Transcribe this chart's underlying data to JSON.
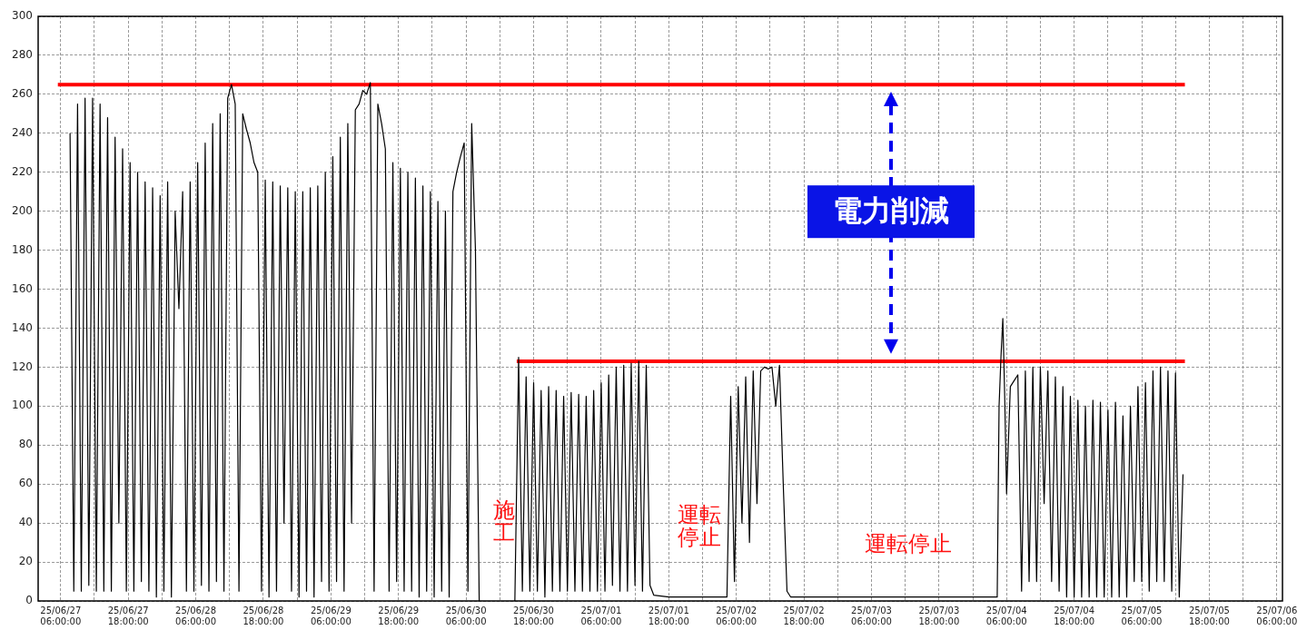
{
  "chart_data": {
    "type": "line",
    "marker": "none",
    "grid": true,
    "legend": false,
    "xlim": [
      "--06-27T02:00",
      "--07-06T07:00"
    ],
    "xticks": [
      {
        "value": "--06-27T06:00",
        "label": "25/06/27\n06:00:00"
      },
      {
        "value": "--06-27T12:00",
        "label": null
      },
      {
        "value": "--06-27T18:00",
        "label": "25/06/27\n18:00:00"
      },
      {
        "value": "--06-28T00:00",
        "label": null
      },
      {
        "value": "--06-28T06:00",
        "label": "25/06/28\n06:00:00"
      },
      {
        "value": "--06-28T12:00",
        "label": null
      },
      {
        "value": "--06-28T18:00",
        "label": "25/06/28\n18:00:00"
      },
      {
        "value": "--06-29T00:00",
        "label": null
      },
      {
        "value": "--06-29T06:00",
        "label": "25/06/29\n06:00:00"
      },
      {
        "value": "--06-29T12:00",
        "label": null
      },
      {
        "value": "--06-29T18:00",
        "label": "25/06/29\n18:00:00"
      },
      {
        "value": "--06-30T00:00",
        "label": null
      },
      {
        "value": "--06-30T06:00",
        "label": "25/06/30\n06:00:00"
      },
      {
        "value": "--06-30T12:00",
        "label": null
      },
      {
        "value": "--06-30T18:00",
        "label": "25/06/30\n18:00:00"
      },
      {
        "value": "--07-01T00:00",
        "label": null
      },
      {
        "value": "--07-01T06:00",
        "label": "25/07/01\n06:00:00"
      },
      {
        "value": "--07-01T12:00",
        "label": null
      },
      {
        "value": "--07-01T18:00",
        "label": "25/07/01\n18:00:00"
      },
      {
        "value": "--07-02T00:00",
        "label": null
      },
      {
        "value": "--07-02T06:00",
        "label": "25/07/02\n06:00:00"
      },
      {
        "value": "--07-02T12:00",
        "label": null
      },
      {
        "value": "--07-02T18:00",
        "label": "25/07/02\n18:00:00"
      },
      {
        "value": "--07-03T00:00",
        "label": null
      },
      {
        "value": "--07-03T06:00",
        "label": "25/07/03\n06:00:00"
      },
      {
        "value": "--07-03T12:00",
        "label": null
      },
      {
        "value": "--07-03T18:00",
        "label": "25/07/03\n18:00:00"
      },
      {
        "value": "--07-04T00:00",
        "label": null
      },
      {
        "value": "--07-04T06:00",
        "label": "25/07/04\n06:00:00"
      },
      {
        "value": "--07-04T12:00",
        "label": null
      },
      {
        "value": "--07-04T18:00",
        "label": "25/07/04\n18:00:00"
      },
      {
        "value": "--07-05T00:00",
        "label": null
      },
      {
        "value": "--07-05T06:00",
        "label": "25/07/05\n06:00:00"
      },
      {
        "value": "--07-05T12:00",
        "label": null
      },
      {
        "value": "--07-05T18:00",
        "label": "25/07/05\n18:00:00"
      },
      {
        "value": "--07-06T00:00",
        "label": null
      },
      {
        "value": "--07-06T06:00",
        "label": "25/07/06\n06:00:00"
      }
    ],
    "ylim": [
      0,
      300
    ],
    "yticks": [
      0,
      20,
      40,
      60,
      80,
      100,
      120,
      140,
      160,
      180,
      200,
      220,
      240,
      260,
      280,
      300
    ],
    "series": [
      {
        "color": "#000000",
        "x": [
          "--06-27T07:40",
          "--06-27T08:20",
          "--06-27T09:00",
          "--06-27T09:40",
          "--06-27T10:20",
          "--06-27T11:00",
          "--06-27T11:40",
          "--06-27T12:20",
          "--06-27T13:00",
          "--06-27T13:40",
          "--06-27T14:20",
          "--06-27T15:00",
          "--06-27T15:40",
          "--06-27T16:20",
          "--06-27T17:00",
          "--06-27T17:40",
          "--06-27T18:20",
          "--06-27T19:00",
          "--06-27T19:40",
          "--06-27T20:20",
          "--06-27T21:00",
          "--06-27T21:40",
          "--06-27T22:20",
          "--06-27T23:00",
          "--06-27T23:40",
          "--06-28T00:20",
          "--06-28T01:00",
          "--06-28T01:40",
          "--06-28T02:20",
          "--06-28T03:00",
          "--06-28T03:40",
          "--06-28T04:20",
          "--06-28T05:00",
          "--06-28T05:40",
          "--06-28T06:20",
          "--06-28T07:00",
          "--06-28T07:40",
          "--06-28T08:20",
          "--06-28T09:00",
          "--06-28T09:40",
          "--06-28T10:20",
          "--06-28T11:00",
          "--06-28T11:40",
          "--06-28T12:20",
          "--06-28T13:00",
          "--06-28T13:40",
          "--06-28T14:20",
          "--06-28T15:00",
          "--06-28T15:40",
          "--06-28T16:20",
          "--06-28T17:00",
          "--06-28T17:40",
          "--06-28T18:20",
          "--06-28T19:00",
          "--06-28T19:40",
          "--06-28T20:20",
          "--06-28T21:00",
          "--06-28T21:40",
          "--06-28T22:20",
          "--06-28T23:00",
          "--06-28T23:40",
          "--06-29T00:20",
          "--06-29T01:00",
          "--06-29T01:40",
          "--06-29T02:20",
          "--06-29T03:00",
          "--06-29T03:40",
          "--06-29T04:20",
          "--06-29T05:00",
          "--06-29T05:40",
          "--06-29T06:20",
          "--06-29T07:00",
          "--06-29T07:40",
          "--06-29T08:20",
          "--06-29T09:00",
          "--06-29T09:40",
          "--06-29T10:20",
          "--06-29T11:00",
          "--06-29T11:40",
          "--06-29T12:20",
          "--06-29T13:00",
          "--06-29T13:40",
          "--06-29T14:20",
          "--06-29T15:00",
          "--06-29T15:40",
          "--06-29T16:20",
          "--06-29T17:00",
          "--06-29T17:40",
          "--06-29T18:20",
          "--06-29T19:00",
          "--06-29T19:40",
          "--06-29T20:20",
          "--06-29T21:00",
          "--06-29T21:40",
          "--06-29T22:20",
          "--06-29T23:00",
          "--06-29T23:40",
          "--06-30T00:20",
          "--06-30T01:00",
          "--06-30T01:40",
          "--06-30T02:20",
          "--06-30T03:00",
          "--06-30T03:40",
          "--06-30T04:20",
          "--06-30T05:00",
          "--06-30T05:40",
          "--06-30T06:20",
          "--06-30T07:00",
          "--06-30T07:40",
          "--06-30T08:20",
          "--06-30T11:40",
          "--06-30T14:40",
          "--06-30T15:20",
          "--06-30T16:00",
          "--06-30T16:40",
          "--06-30T17:20",
          "--06-30T18:00",
          "--06-30T18:40",
          "--06-30T19:20",
          "--06-30T20:00",
          "--06-30T20:40",
          "--06-30T21:20",
          "--06-30T22:00",
          "--06-30T22:40",
          "--06-30T23:20",
          "--07-01T00:00",
          "--07-01T00:40",
          "--07-01T01:20",
          "--07-01T02:00",
          "--07-01T02:40",
          "--07-01T03:20",
          "--07-01T04:00",
          "--07-01T04:40",
          "--07-01T05:20",
          "--07-01T06:00",
          "--07-01T06:40",
          "--07-01T07:20",
          "--07-01T08:00",
          "--07-01T08:40",
          "--07-01T09:20",
          "--07-01T10:00",
          "--07-01T10:40",
          "--07-01T11:20",
          "--07-01T12:00",
          "--07-01T12:40",
          "--07-01T13:20",
          "--07-01T14:00",
          "--07-01T14:40",
          "--07-01T15:20",
          "--07-01T18:00",
          "--07-02T04:20",
          "--07-02T05:00",
          "--07-02T05:40",
          "--07-02T06:20",
          "--07-02T07:00",
          "--07-02T07:40",
          "--07-02T08:20",
          "--07-02T09:00",
          "--07-02T09:40",
          "--07-02T10:20",
          "--07-02T11:00",
          "--07-02T11:40",
          "--07-02T12:20",
          "--07-02T13:00",
          "--07-02T13:40",
          "--07-02T14:20",
          "--07-02T15:00",
          "--07-02T15:40",
          "--07-03T12:00",
          "--07-04T04:20",
          "--07-04T04:40",
          "--07-04T05:00",
          "--07-04T05:20",
          "--07-04T05:40",
          "--07-04T06:00",
          "--07-04T06:40",
          "--07-04T07:20",
          "--07-04T08:00",
          "--07-04T08:40",
          "--07-04T09:20",
          "--07-04T10:00",
          "--07-04T10:40",
          "--07-04T11:20",
          "--07-04T12:00",
          "--07-04T12:40",
          "--07-04T13:20",
          "--07-04T14:00",
          "--07-04T14:40",
          "--07-04T15:20",
          "--07-04T16:00",
          "--07-04T16:40",
          "--07-04T17:20",
          "--07-04T18:00",
          "--07-04T18:40",
          "--07-04T19:20",
          "--07-04T20:00",
          "--07-04T20:40",
          "--07-04T21:20",
          "--07-04T22:00",
          "--07-04T22:40",
          "--07-04T23:20",
          "--07-05T00:00",
          "--07-05T00:40",
          "--07-05T01:20",
          "--07-05T02:00",
          "--07-05T02:40",
          "--07-05T03:20",
          "--07-05T04:00",
          "--07-05T04:40",
          "--07-05T05:20",
          "--07-05T06:00",
          "--07-05T06:40",
          "--07-05T07:20",
          "--07-05T08:00",
          "--07-05T08:40",
          "--07-05T09:20",
          "--07-05T10:00",
          "--07-05T10:40",
          "--07-05T11:20",
          "--07-05T12:00",
          "--07-05T12:40",
          "--07-05T13:20"
        ],
        "values": [
          240,
          5,
          255,
          5,
          258,
          8,
          258,
          5,
          255,
          5,
          248,
          5,
          238,
          40,
          232,
          5,
          225,
          5,
          220,
          10,
          215,
          5,
          212,
          2,
          208,
          5,
          215,
          2,
          200,
          150,
          210,
          5,
          215,
          5,
          225,
          8,
          235,
          5,
          245,
          10,
          250,
          5,
          258,
          265,
          255,
          5,
          250,
          242,
          235,
          225,
          220,
          5,
          216,
          2,
          215,
          5,
          213,
          40,
          212,
          5,
          210,
          2,
          210,
          5,
          212,
          2,
          213,
          10,
          220,
          5,
          228,
          10,
          238,
          5,
          245,
          40,
          252,
          255,
          262,
          260,
          266,
          5,
          255,
          245,
          232,
          5,
          225,
          10,
          222,
          5,
          220,
          5,
          217,
          2,
          213,
          5,
          210,
          2,
          205,
          5,
          200,
          2,
          210,
          220,
          228,
          235,
          5,
          245,
          180,
          0,
          null,
          0,
          125,
          5,
          115,
          5,
          112,
          5,
          108,
          2,
          110,
          5,
          108,
          5,
          105,
          5,
          107,
          5,
          106,
          5,
          105,
          5,
          108,
          5,
          112,
          5,
          116,
          8,
          120,
          5,
          121,
          5,
          122,
          8,
          123,
          5,
          121,
          8,
          3,
          2,
          2,
          105,
          10,
          110,
          40,
          115,
          30,
          118,
          50,
          118,
          120,
          119,
          120,
          100,
          121,
          60,
          5,
          2,
          2,
          2,
          100,
          125,
          145,
          105,
          55,
          110,
          113,
          116,
          5,
          118,
          10,
          120,
          10,
          120,
          50,
          118,
          10,
          115,
          5,
          110,
          2,
          105,
          2,
          103,
          2,
          100,
          2,
          103,
          2,
          102,
          2,
          98,
          2,
          102,
          2,
          95,
          2,
          100,
          10,
          110,
          10,
          112,
          5,
          118,
          10,
          120,
          10,
          118,
          5,
          117,
          2,
          65
        ]
      },
      {
        "type": "line",
        "color": "#ff0000",
        "x": [
          "--06-27T05:30",
          "--07-05T13:40"
        ],
        "values": [
          265,
          265
        ]
      },
      {
        "type": "line",
        "color": "#ff0000",
        "x": [
          "--06-30T15:00",
          "--07-05T13:40"
        ],
        "values": [
          123,
          123
        ]
      }
    ],
    "annotations": [
      "電力削減",
      "施工",
      "運転停止",
      "運転停止"
    ]
  }
}
